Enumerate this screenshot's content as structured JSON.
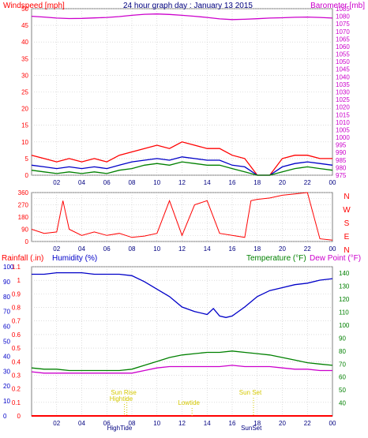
{
  "colors": {
    "red": "#ff0000",
    "blue": "#0000c8",
    "magenta": "#cc00cc",
    "green": "#008000",
    "yellow": "#d4c800",
    "grid": "#c8c8c8",
    "frame": "#808080"
  },
  "header": {
    "left": "Windspeed [mph]",
    "center": "24 hour graph day : January 13 2015",
    "right": "Barometer [mb]"
  },
  "bottom_labels": {
    "rainfall": "Rainfall (.in)",
    "humidity": "Humidity (%)",
    "temperature": "Temperature (°F)",
    "dewpoint": "Dew Point (°F)"
  },
  "events": {
    "hightide": "Hightide",
    "sunrise": "Sun Rise",
    "lowtide": "Lowtide",
    "sunset": "Sun Set",
    "hightide_axis": "HighTide",
    "sunset_axis": "SunSet"
  },
  "time_ticks": [
    "02",
    "04",
    "06",
    "08",
    "10",
    "12",
    "14",
    "16",
    "18",
    "20",
    "22",
    "00"
  ],
  "chart_data": [
    {
      "type": "line",
      "title": "24 hour graph day : January 13 2015",
      "ylabel": "Windspeed [mph]",
      "ylabel_right": "Barometer [mb]",
      "x_ticks": [
        "02",
        "04",
        "06",
        "08",
        "10",
        "12",
        "14",
        "16",
        "18",
        "20",
        "22",
        "00"
      ],
      "left_axis": {
        "min": 0,
        "max": 50,
        "ticks": [
          0,
          5,
          10,
          15,
          20,
          25,
          30,
          35,
          40,
          45,
          50
        ]
      },
      "right_axis": {
        "min": 975,
        "max": 1085,
        "ticks": [
          975,
          980,
          985,
          990,
          995,
          1000,
          1005,
          1010,
          1015,
          1020,
          1025,
          1030,
          1035,
          1040,
          1045,
          1050,
          1055,
          1060,
          1065,
          1070,
          1075,
          1080,
          1085
        ]
      },
      "series": [
        {
          "name": "Barometer [mb]",
          "axis": "right",
          "color": "#cc00cc",
          "x": [
            0,
            1,
            2,
            3,
            4,
            5,
            6,
            7,
            8,
            9,
            10,
            11,
            12,
            13,
            14,
            15,
            16,
            17,
            18,
            19,
            20,
            21,
            22,
            23,
            24
          ],
          "values": [
            1080,
            1079.5,
            1078.8,
            1078.5,
            1078.6,
            1078.9,
            1079.2,
            1079.8,
            1080.6,
            1081.3,
            1081.5,
            1081.2,
            1080.6,
            1080,
            1079.2,
            1078.3,
            1077.8,
            1078,
            1078.4,
            1078.8,
            1079,
            1079.3,
            1079.5,
            1079.2,
            1078.8
          ]
        },
        {
          "name": "Wind gust",
          "axis": "left",
          "color": "#ff0000",
          "x": [
            0,
            1,
            2,
            3,
            4,
            5,
            6,
            7,
            8,
            9,
            10,
            11,
            12,
            13,
            14,
            15,
            16,
            17,
            18,
            19,
            20,
            21,
            22,
            23,
            24
          ],
          "values": [
            6,
            5,
            4,
            5,
            4,
            5,
            4,
            6,
            7,
            8,
            9,
            8,
            10,
            9,
            8,
            8,
            6,
            5,
            0,
            0,
            5,
            6,
            6,
            5,
            5
          ]
        },
        {
          "name": "Wind average",
          "axis": "left",
          "color": "#0000c8",
          "x": [
            0,
            1,
            2,
            3,
            4,
            5,
            6,
            7,
            8,
            9,
            10,
            11,
            12,
            13,
            14,
            15,
            16,
            17,
            18,
            19,
            20,
            21,
            22,
            23,
            24
          ],
          "values": [
            3,
            2.5,
            2,
            2.5,
            2,
            2.5,
            2,
            3,
            4,
            4.5,
            5,
            4.5,
            5.5,
            5,
            4.5,
            4.5,
            3,
            2.5,
            0,
            0,
            2.5,
            3.5,
            4,
            3.5,
            3
          ]
        },
        {
          "name": "Wind speed",
          "axis": "left",
          "color": "#008000",
          "x": [
            0,
            1,
            2,
            3,
            4,
            5,
            6,
            7,
            8,
            9,
            10,
            11,
            12,
            13,
            14,
            15,
            16,
            17,
            18,
            19,
            20,
            21,
            22,
            23,
            24
          ],
          "values": [
            1.5,
            1,
            0.5,
            1,
            0.5,
            1,
            0.5,
            1.5,
            2,
            3,
            3.5,
            3,
            4,
            3.5,
            3,
            3,
            2,
            1,
            0,
            0,
            1,
            2,
            2.5,
            2,
            1.5
          ]
        }
      ]
    },
    {
      "type": "scatter",
      "ylabel_right": "N W S E N",
      "y_range": [
        0,
        360
      ],
      "y_ticks": [
        0,
        45,
        90,
        135,
        180,
        225,
        270,
        315,
        360
      ],
      "right_labels": [
        "N",
        "W",
        "S",
        "E",
        "N"
      ],
      "series": [
        {
          "name": "Wind direction",
          "color": "#ff0000",
          "x": [
            0,
            1,
            2,
            2.5,
            3,
            4,
            5,
            6,
            7,
            8,
            9,
            10,
            11,
            12,
            13,
            14,
            15,
            16,
            17,
            17.5,
            18,
            19,
            20,
            21,
            22,
            23,
            24
          ],
          "values": [
            90,
            60,
            70,
            300,
            90,
            45,
            70,
            45,
            60,
            30,
            40,
            60,
            300,
            45,
            270,
            300,
            60,
            45,
            30,
            300,
            310,
            320,
            340,
            350,
            360,
            20,
            10
          ]
        }
      ]
    },
    {
      "type": "line",
      "ylabel": "Rainfall (.in)",
      "ylabel2": "Humidity (%)",
      "ylabel_right": "Temperature (°F)",
      "ylabel_right2": "Dew Point (°F)",
      "left_axis": {
        "min": 0,
        "max": 1.1,
        "ticks": [
          0,
          0.1,
          0.2,
          0.3,
          0.4,
          0.5,
          0.6,
          0.7,
          0.8,
          0.9,
          1,
          1.1
        ]
      },
      "humidity_axis": {
        "min": 0,
        "max": 100,
        "ticks": [
          0,
          10,
          20,
          30,
          40,
          50,
          60,
          70,
          80,
          90,
          100
        ]
      },
      "right_axis": {
        "min": 30,
        "max": 145,
        "ticks": [
          40,
          50,
          60,
          70,
          80,
          90,
          100,
          110,
          120,
          130,
          140
        ]
      },
      "series": [
        {
          "name": "Humidity (%)",
          "axis": "humidity",
          "color": "#0000c8",
          "x": [
            0,
            1,
            2,
            3,
            4,
            5,
            6,
            7,
            8,
            9,
            10,
            11,
            12,
            13,
            14,
            14.5,
            15,
            15.5,
            16,
            17,
            18,
            19,
            20,
            21,
            22,
            23,
            24
          ],
          "values": [
            95,
            95,
            96,
            96,
            96,
            95,
            95,
            95,
            94,
            90,
            85,
            80,
            73,
            70,
            68,
            72,
            67,
            66,
            67,
            73,
            80,
            84,
            86,
            88,
            89,
            91,
            92
          ]
        },
        {
          "name": "Temperature (°F)",
          "axis": "right",
          "color": "#008000",
          "x": [
            0,
            1,
            2,
            3,
            4,
            5,
            6,
            7,
            8,
            9,
            10,
            11,
            12,
            13,
            14,
            15,
            16,
            17,
            18,
            19,
            20,
            21,
            22,
            23,
            24
          ],
          "values": [
            67,
            66,
            66,
            65,
            65,
            65,
            65,
            65,
            66,
            69,
            72,
            75,
            77,
            78,
            79,
            79,
            80,
            79,
            78,
            77,
            75,
            73,
            71,
            70,
            69
          ]
        },
        {
          "name": "Dew Point (°F)",
          "axis": "right",
          "color": "#cc00cc",
          "x": [
            0,
            1,
            2,
            3,
            4,
            5,
            6,
            7,
            8,
            9,
            10,
            11,
            12,
            13,
            14,
            15,
            16,
            17,
            18,
            19,
            20,
            21,
            22,
            23,
            24
          ],
          "values": [
            64,
            63,
            63,
            63,
            63,
            63,
            63,
            63,
            63,
            65,
            67,
            68,
            68,
            68,
            68,
            68,
            69,
            68,
            68,
            68,
            67,
            66,
            66,
            65,
            65
          ]
        },
        {
          "name": "Rainfall (.in)",
          "axis": "left",
          "color": "#ff0000",
          "x": [
            0,
            24
          ],
          "values": [
            0,
            0
          ]
        }
      ]
    }
  ]
}
